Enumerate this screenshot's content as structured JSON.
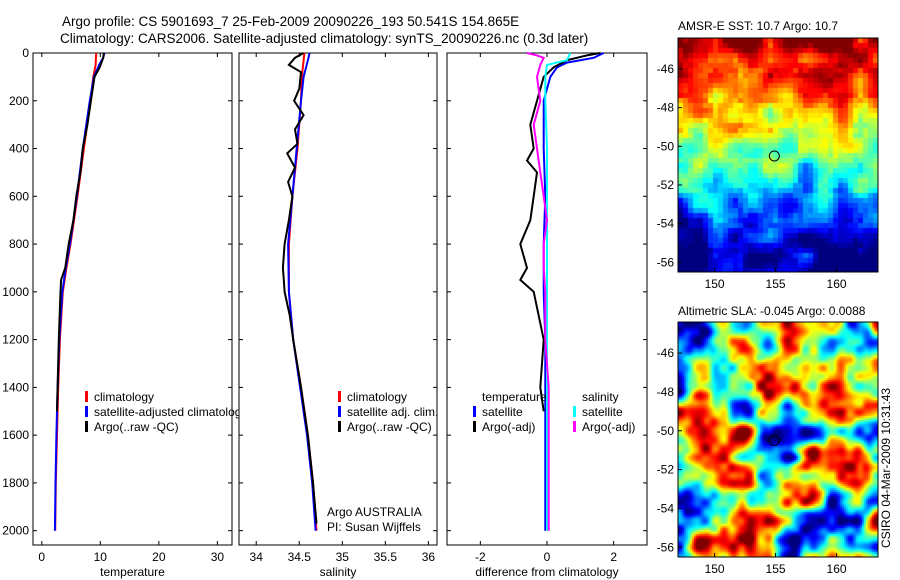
{
  "title_line1": "Argo profile: CS 5901693_7 25-Feb-2009 20090226_193 50.541S 154.865E",
  "title_line2": "Climatology: CARS2006. Satellite-adjusted climatology: synTS_20090226.nc (0.3d later)",
  "colors": {
    "climatology": "#ff0000",
    "satellite": "#0000ff",
    "argo": "#000000",
    "sal_satellite": "#00ffff",
    "sal_argo": "#ff00ff"
  },
  "chart_data": [
    {
      "type": "line",
      "name": "temperature",
      "xlabel": "temperature",
      "ylabel": "",
      "xlim": [
        -1.5,
        32.5
      ],
      "ylim": [
        2060,
        0
      ],
      "xticks": [
        0,
        10,
        20,
        30
      ],
      "yticks": [
        0,
        200,
        400,
        600,
        800,
        1000,
        1200,
        1400,
        1600,
        1800,
        2000
      ],
      "legend": [
        "climatology",
        "satellite-adjusted climatology",
        "Argo(..raw -QC)"
      ],
      "series": [
        {
          "name": "climatology",
          "depth": [
            0,
            50,
            100,
            200,
            400,
            600,
            800,
            900,
            1000,
            1200,
            1400,
            1600,
            1800,
            2000
          ],
          "values": [
            9.3,
            9.2,
            8.8,
            8.3,
            7.2,
            6.1,
            4.9,
            4.2,
            3.6,
            3.1,
            2.8,
            2.6,
            2.4,
            2.3
          ]
        },
        {
          "name": "satellite-adjusted climatology",
          "depth": [
            0,
            20,
            50,
            100,
            200,
            400,
            600,
            800,
            900,
            1000,
            1200,
            1400,
            1600,
            1800,
            2000
          ],
          "values": [
            10.7,
            10.5,
            9.8,
            8.9,
            8.2,
            7.0,
            6.0,
            4.8,
            4.1,
            3.5,
            3.0,
            2.7,
            2.5,
            2.35,
            2.25
          ]
        },
        {
          "name": "Argo(..raw -QC)",
          "depth": [
            0,
            20,
            60,
            100,
            200,
            300,
            400,
            500,
            600,
            700,
            800,
            900,
            950,
            1000,
            1200,
            1400,
            1500
          ],
          "values": [
            10.6,
            10.5,
            9.9,
            9.0,
            8.4,
            7.8,
            7.0,
            6.6,
            5.9,
            5.4,
            4.6,
            4.0,
            3.3,
            3.2,
            2.9,
            2.7,
            2.6
          ]
        }
      ]
    },
    {
      "type": "line",
      "name": "salinity",
      "xlabel": "salinity",
      "xlim": [
        33.8,
        36.1
      ],
      "ylim": [
        2060,
        0
      ],
      "xticks": [
        34,
        34.5,
        35,
        35.5,
        36
      ],
      "legend": [
        "climatology",
        "satellite adj. clim.",
        "Argo(..raw -QC)"
      ],
      "annotation": [
        "Argo AUSTRALIA",
        "PI: Susan Wijffels"
      ],
      "series": [
        {
          "name": "climatology",
          "depth": [
            0,
            100,
            200,
            400,
            600,
            800,
            1000,
            1200,
            1400,
            1600,
            1800,
            2000
          ],
          "values": [
            34.56,
            34.53,
            34.52,
            34.48,
            34.42,
            34.38,
            34.38,
            34.43,
            34.52,
            34.6,
            34.66,
            34.7
          ]
        },
        {
          "name": "satellite adj. clim.",
          "depth": [
            0,
            30,
            100,
            200,
            400,
            600,
            800,
            1000,
            1200,
            1400,
            1600,
            1800,
            2000
          ],
          "values": [
            34.62,
            34.6,
            34.55,
            34.52,
            34.47,
            34.42,
            34.37,
            34.38,
            34.43,
            34.51,
            34.59,
            34.65,
            34.69
          ]
        },
        {
          "name": "Argo(..raw -QC)",
          "depth": [
            0,
            20,
            50,
            80,
            150,
            200,
            260,
            320,
            380,
            420,
            480,
            540,
            600,
            700,
            800,
            900,
            950,
            1000,
            1100,
            1200,
            1400,
            1600,
            1800,
            1970
          ],
          "values": [
            34.55,
            34.45,
            34.38,
            34.52,
            34.5,
            34.44,
            34.55,
            34.45,
            34.48,
            34.36,
            34.45,
            34.37,
            34.42,
            34.38,
            34.33,
            34.31,
            34.32,
            34.33,
            34.39,
            34.43,
            34.52,
            34.6,
            34.66,
            34.7
          ]
        }
      ]
    },
    {
      "type": "line",
      "name": "difference",
      "xlabel": "difference from climatology",
      "xlim": [
        -3,
        3
      ],
      "ylim": [
        2060,
        0
      ],
      "xticks": [
        -2,
        0,
        2
      ],
      "legend_groups": [
        {
          "header": "temperature",
          "items": [
            "satellite",
            "Argo(-adj)"
          ]
        },
        {
          "header": "salinity",
          "items": [
            "satellite",
            "Argo(-adj)"
          ]
        }
      ],
      "series": [
        {
          "name": "temperature satellite",
          "depth": [
            0,
            20,
            40,
            60,
            100,
            150,
            200,
            400,
            600,
            800,
            1000,
            1200,
            1600,
            2000
          ],
          "values": [
            1.7,
            1.4,
            0.6,
            0.3,
            0.1,
            0.0,
            -0.1,
            -0.1,
            -0.05,
            -0.1,
            -0.1,
            -0.05,
            -0.05,
            -0.05
          ]
        },
        {
          "name": "temperature Argo(-adj)",
          "depth": [
            0,
            10,
            30,
            60,
            100,
            200,
            300,
            400,
            450,
            500,
            600,
            700,
            800,
            900,
            950,
            1000,
            1200,
            1400,
            1500
          ],
          "values": [
            1.6,
            1.2,
            0.6,
            0.2,
            -0.1,
            -0.3,
            -0.5,
            -0.4,
            -0.6,
            -0.3,
            -0.4,
            -0.5,
            -0.8,
            -0.6,
            -0.8,
            -0.4,
            -0.1,
            -0.2,
            -0.1
          ]
        },
        {
          "name": "salinity satellite",
          "depth": [
            0,
            30,
            50,
            100,
            200,
            400,
            600,
            800,
            1000,
            1200,
            1600,
            2000
          ],
          "values": [
            0.7,
            0.6,
            0.0,
            -0.05,
            -0.05,
            0.0,
            0.0,
            0.0,
            0.0,
            0.0,
            0.0,
            0.0
          ]
        },
        {
          "name": "salinity Argo(-adj)",
          "depth": [
            0,
            10,
            20,
            50,
            100,
            200,
            300,
            400,
            500,
            600,
            700,
            800,
            900,
            1000,
            1200,
            1400,
            1600,
            1800,
            2000
          ],
          "values": [
            -0.6,
            -0.3,
            -0.1,
            -0.2,
            -0.3,
            -0.2,
            -0.4,
            -0.3,
            -0.2,
            -0.1,
            0.0,
            -0.1,
            -0.1,
            -0.05,
            -0.05,
            0.05,
            0.05,
            0.05,
            0.05
          ]
        }
      ]
    },
    {
      "type": "heatmap",
      "name": "sst-map",
      "title": "AMSR-E SST: 10.7 Argo: 10.7",
      "xticks": [
        150,
        155,
        160
      ],
      "yticks": [
        -46,
        -48,
        -50,
        -52,
        -54,
        -56
      ],
      "xlim": [
        147,
        163.4
      ],
      "ylim": [
        -56.5,
        -44.4
      ],
      "marker": {
        "lon": 154.9,
        "lat": -50.5
      }
    },
    {
      "type": "heatmap",
      "name": "sla-map",
      "title": "Altimetric SLA: -0.045 Argo: 0.0088",
      "xticks": [
        150,
        155,
        160
      ],
      "yticks": [
        -46,
        -48,
        -50,
        -52,
        -54,
        -56
      ],
      "xlim": [
        147,
        163.4
      ],
      "ylim": [
        -56.5,
        -44.4
      ],
      "marker": {
        "lon": 154.9,
        "lat": -50.5
      }
    }
  ],
  "footer_stamp": "CSIRO 04-Mar-2009 10:31:43"
}
